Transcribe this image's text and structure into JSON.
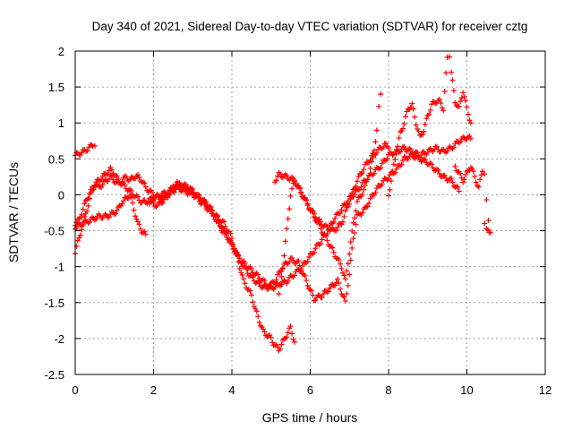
{
  "chart_data": {
    "type": "scatter",
    "title": "Day 340 of 2021, Sidereal Day-to-day VTEC variation (SDTVAR) for receiver cztg",
    "xlabel": "GPS time / hours",
    "ylabel": "SDTVAR / TECUs",
    "xlim": [
      0,
      12
    ],
    "ylim": [
      -2.5,
      2
    ],
    "xticks": [
      0,
      2,
      4,
      6,
      8,
      10,
      12
    ],
    "yticks": [
      -2.5,
      -2,
      -1.5,
      -1,
      -0.5,
      0,
      0.5,
      1,
      1.5,
      2
    ],
    "grid": true,
    "marker": "+",
    "color": "#ff0000",
    "series": [
      {
        "points": [
          [
            0.0,
            0.55
          ],
          [
            0.2,
            0.6
          ],
          [
            0.35,
            0.65
          ],
          [
            0.45,
            0.7
          ],
          [
            0.5,
            0.68
          ]
        ]
      },
      {
        "points": [
          [
            0.0,
            -0.8
          ],
          [
            0.1,
            -0.6
          ],
          [
            0.2,
            -0.4
          ],
          [
            0.3,
            -0.2
          ],
          [
            0.4,
            0.0
          ],
          [
            0.5,
            0.15
          ],
          [
            0.6,
            0.2
          ],
          [
            0.7,
            0.25
          ],
          [
            0.8,
            0.3
          ],
          [
            0.9,
            0.35
          ],
          [
            1.0,
            0.3
          ],
          [
            1.1,
            0.2
          ],
          [
            1.2,
            0.15
          ],
          [
            1.3,
            0.1
          ],
          [
            1.4,
            0.05
          ],
          [
            1.5,
            0.0
          ],
          [
            1.6,
            -0.05
          ],
          [
            1.7,
            -0.1
          ],
          [
            1.8,
            -0.1
          ],
          [
            2.0,
            -0.05
          ],
          [
            2.2,
            0.0
          ],
          [
            2.4,
            0.05
          ],
          [
            2.6,
            0.15
          ],
          [
            2.8,
            0.1
          ],
          [
            3.0,
            0.05
          ],
          [
            3.2,
            -0.1
          ],
          [
            3.4,
            -0.2
          ],
          [
            3.6,
            -0.3
          ],
          [
            3.8,
            -0.4
          ],
          [
            4.0,
            -0.6
          ],
          [
            4.1,
            -0.8
          ],
          [
            4.2,
            -1.0
          ],
          [
            4.3,
            -1.2
          ],
          [
            4.4,
            -1.3
          ],
          [
            4.5,
            -1.4
          ],
          [
            4.6,
            -1.6
          ],
          [
            4.7,
            -1.75
          ],
          [
            4.8,
            -1.9
          ],
          [
            5.0,
            -2.0
          ],
          [
            5.1,
            -2.1
          ],
          [
            5.2,
            -2.15
          ],
          [
            5.3,
            -2.05
          ],
          [
            5.4,
            -1.95
          ],
          [
            5.5,
            -1.85
          ],
          [
            5.6,
            -2.05
          ]
        ]
      },
      {
        "points": [
          [
            0.0,
            -0.4
          ],
          [
            0.1,
            -0.35
          ],
          [
            0.2,
            -0.2
          ],
          [
            0.3,
            -0.05
          ],
          [
            0.4,
            0.05
          ],
          [
            0.5,
            0.15
          ],
          [
            0.6,
            0.1
          ],
          [
            0.7,
            0.15
          ],
          [
            0.8,
            0.2
          ],
          [
            0.9,
            0.25
          ],
          [
            1.0,
            0.2
          ],
          [
            1.1,
            0.15
          ],
          [
            1.2,
            0.2
          ],
          [
            1.3,
            0.25
          ],
          [
            1.4,
            0.2
          ],
          [
            1.5,
            0.25
          ],
          [
            1.6,
            0.25
          ],
          [
            1.7,
            0.2
          ],
          [
            1.8,
            0.1
          ],
          [
            2.0,
            0.0
          ],
          [
            2.2,
            -0.05
          ],
          [
            2.4,
            0.0
          ],
          [
            2.6,
            0.1
          ],
          [
            2.8,
            0.05
          ],
          [
            3.0,
            0.0
          ],
          [
            3.2,
            -0.05
          ],
          [
            3.4,
            -0.15
          ],
          [
            3.6,
            -0.3
          ],
          [
            3.8,
            -0.5
          ],
          [
            4.0,
            -0.7
          ],
          [
            4.2,
            -0.9
          ],
          [
            4.4,
            -1.0
          ],
          [
            4.6,
            -1.1
          ],
          [
            4.8,
            -1.2
          ],
          [
            5.0,
            -1.3
          ],
          [
            5.2,
            -1.25
          ],
          [
            5.4,
            -1.2
          ],
          [
            5.6,
            -1.1
          ],
          [
            5.8,
            -1.0
          ],
          [
            6.0,
            -0.85
          ],
          [
            6.2,
            -0.7
          ],
          [
            6.4,
            -0.55
          ],
          [
            6.6,
            -0.35
          ],
          [
            6.8,
            -0.2
          ],
          [
            7.0,
            -0.05
          ],
          [
            7.2,
            0.05
          ],
          [
            7.4,
            0.2
          ],
          [
            7.6,
            0.3
          ],
          [
            7.8,
            0.4
          ],
          [
            8.0,
            0.55
          ],
          [
            8.2,
            0.6
          ],
          [
            8.4,
            0.65
          ],
          [
            8.6,
            0.6
          ],
          [
            8.8,
            0.55
          ],
          [
            9.0,
            0.6
          ],
          [
            9.2,
            0.65
          ],
          [
            9.4,
            0.6
          ],
          [
            9.6,
            0.65
          ],
          [
            9.8,
            0.75
          ],
          [
            10.0,
            0.8
          ],
          [
            10.1,
            0.78
          ]
        ]
      },
      {
        "points": [
          [
            0.0,
            -0.45
          ],
          [
            0.2,
            -0.4
          ],
          [
            0.4,
            -0.35
          ],
          [
            0.6,
            -0.3
          ],
          [
            0.8,
            -0.3
          ],
          [
            1.0,
            -0.25
          ],
          [
            1.1,
            -0.2
          ],
          [
            1.2,
            -0.1
          ],
          [
            1.3,
            -0.05
          ],
          [
            1.4,
            0.0
          ],
          [
            1.5,
            -0.2
          ],
          [
            1.6,
            -0.4
          ],
          [
            1.7,
            -0.5
          ],
          [
            1.8,
            -0.55
          ]
        ]
      },
      {
        "points": [
          [
            1.9,
            -0.1
          ],
          [
            2.1,
            -0.15
          ],
          [
            2.3,
            -0.05
          ],
          [
            2.5,
            0.1
          ],
          [
            2.7,
            0.15
          ],
          [
            2.9,
            0.1
          ],
          [
            3.1,
            0.0
          ],
          [
            3.3,
            -0.1
          ],
          [
            3.5,
            -0.25
          ],
          [
            3.7,
            -0.45
          ],
          [
            3.9,
            -0.6
          ],
          [
            4.1,
            -0.8
          ],
          [
            4.3,
            -1.0
          ],
          [
            4.5,
            -1.15
          ],
          [
            4.7,
            -1.25
          ],
          [
            4.9,
            -1.3
          ],
          [
            5.1,
            -1.2
          ],
          [
            5.3,
            -1.0
          ],
          [
            5.5,
            -0.9
          ],
          [
            5.7,
            -0.95
          ],
          [
            5.9,
            -1.2
          ],
          [
            6.1,
            -1.45
          ],
          [
            6.3,
            -1.4
          ],
          [
            6.5,
            -1.3
          ],
          [
            6.7,
            -1.2
          ],
          [
            6.9,
            -1.5
          ],
          [
            7.0,
            -1.1
          ],
          [
            7.1,
            -0.6
          ],
          [
            7.2,
            -0.3
          ],
          [
            7.4,
            -0.2
          ],
          [
            7.6,
            0.0
          ],
          [
            7.8,
            0.15
          ],
          [
            8.0,
            0.25
          ],
          [
            8.2,
            0.35
          ],
          [
            8.4,
            0.5
          ],
          [
            8.6,
            0.55
          ],
          [
            8.8,
            0.5
          ],
          [
            9.0,
            0.45
          ],
          [
            9.2,
            0.35
          ],
          [
            9.4,
            0.25
          ],
          [
            9.6,
            0.2
          ],
          [
            9.8,
            0.05
          ]
        ]
      },
      {
        "points": [
          [
            5.1,
            0.2
          ],
          [
            5.2,
            0.28
          ],
          [
            5.4,
            0.25
          ],
          [
            5.6,
            0.2
          ],
          [
            5.8,
            0.0
          ],
          [
            6.0,
            -0.2
          ],
          [
            6.2,
            -0.4
          ],
          [
            6.4,
            -0.6
          ],
          [
            6.6,
            -0.8
          ],
          [
            6.8,
            -1.0
          ],
          [
            6.9,
            -1.2
          ],
          [
            7.0,
            -0.8
          ],
          [
            7.1,
            -0.4
          ],
          [
            7.2,
            -0.1
          ],
          [
            7.4,
            0.1
          ],
          [
            7.5,
            0.3
          ],
          [
            7.6,
            0.5
          ],
          [
            7.7,
            0.9
          ],
          [
            7.75,
            1.2
          ],
          [
            7.8,
            1.4
          ]
        ]
      },
      {
        "points": [
          [
            5.2,
            -1.4
          ],
          [
            5.3,
            -1.0
          ],
          [
            5.4,
            -0.5
          ],
          [
            5.5,
            0.0
          ],
          [
            5.6,
            0.2
          ],
          [
            5.8,
            0.0
          ],
          [
            6.0,
            -0.2
          ],
          [
            6.2,
            -0.35
          ],
          [
            6.4,
            -0.45
          ],
          [
            6.6,
            -0.5
          ],
          [
            6.8,
            -0.4
          ],
          [
            7.0,
            -0.1
          ],
          [
            7.2,
            0.2
          ],
          [
            7.4,
            0.4
          ],
          [
            7.6,
            0.55
          ],
          [
            7.8,
            0.65
          ],
          [
            7.9,
            0.7
          ],
          [
            8.0,
            0.65
          ]
        ]
      },
      {
        "points": [
          [
            8.0,
            0.0
          ],
          [
            8.1,
            0.3
          ],
          [
            8.2,
            0.6
          ],
          [
            8.3,
            0.85
          ],
          [
            8.4,
            1.0
          ],
          [
            8.5,
            1.2
          ],
          [
            8.6,
            1.25
          ],
          [
            8.7,
            1.0
          ],
          [
            8.8,
            0.8
          ],
          [
            8.9,
            0.9
          ],
          [
            9.0,
            1.1
          ],
          [
            9.1,
            1.25
          ],
          [
            9.2,
            1.3
          ],
          [
            9.3,
            1.3
          ],
          [
            9.4,
            1.2
          ],
          [
            9.5,
            1.9
          ],
          [
            9.55,
            1.95
          ],
          [
            9.6,
            1.7
          ],
          [
            9.7,
            1.3
          ],
          [
            9.8,
            1.2
          ],
          [
            9.9,
            1.45
          ],
          [
            10.0,
            1.2
          ],
          [
            10.1,
            1.0
          ]
        ]
      },
      {
        "points": [
          [
            9.7,
            0.4
          ],
          [
            9.8,
            0.3
          ],
          [
            9.9,
            0.2
          ],
          [
            10.0,
            0.3
          ],
          [
            10.1,
            0.4
          ],
          [
            10.2,
            0.25
          ],
          [
            10.3,
            0.1
          ],
          [
            10.4,
            0.35
          ],
          [
            10.45,
            0.3
          ],
          [
            10.5,
            -0.1
          ],
          [
            10.55,
            -0.35
          ],
          [
            10.6,
            -0.5
          ],
          [
            10.5,
            -0.5
          ],
          [
            10.45,
            -0.4
          ]
        ]
      }
    ]
  }
}
